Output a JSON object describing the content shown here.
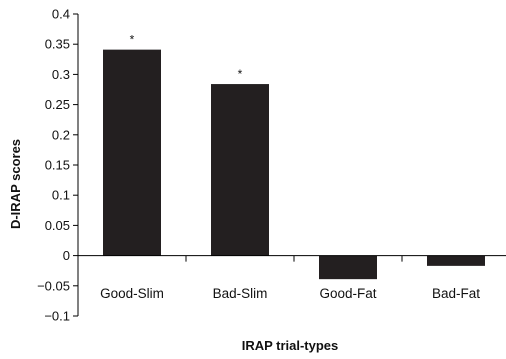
{
  "chart_data": {
    "type": "bar",
    "title": "",
    "xlabel": "IRAP trial-types",
    "ylabel": "D-IRAP scores",
    "categories": [
      "Good-Slim",
      "Bad-Slim",
      "Good-Fat",
      "Bad-Fat"
    ],
    "values": [
      0.341,
      0.284,
      -0.039,
      -0.017
    ],
    "annotations": [
      "*",
      "*",
      "",
      ""
    ],
    "ylim": [
      -0.1,
      0.4
    ],
    "yticks": [
      -0.1,
      -0.05,
      0,
      0.05,
      0.1,
      0.15,
      0.2,
      0.25,
      0.3,
      0.35,
      0.4
    ],
    "ytick_labels": [
      "−0.1",
      "−0.05",
      "0",
      "0.05",
      "0.1",
      "0.15",
      "0.2",
      "0.25",
      "0.3",
      "0.35",
      "0.4"
    ],
    "grid": false,
    "legend": "none",
    "bar_color": "#231f20"
  }
}
